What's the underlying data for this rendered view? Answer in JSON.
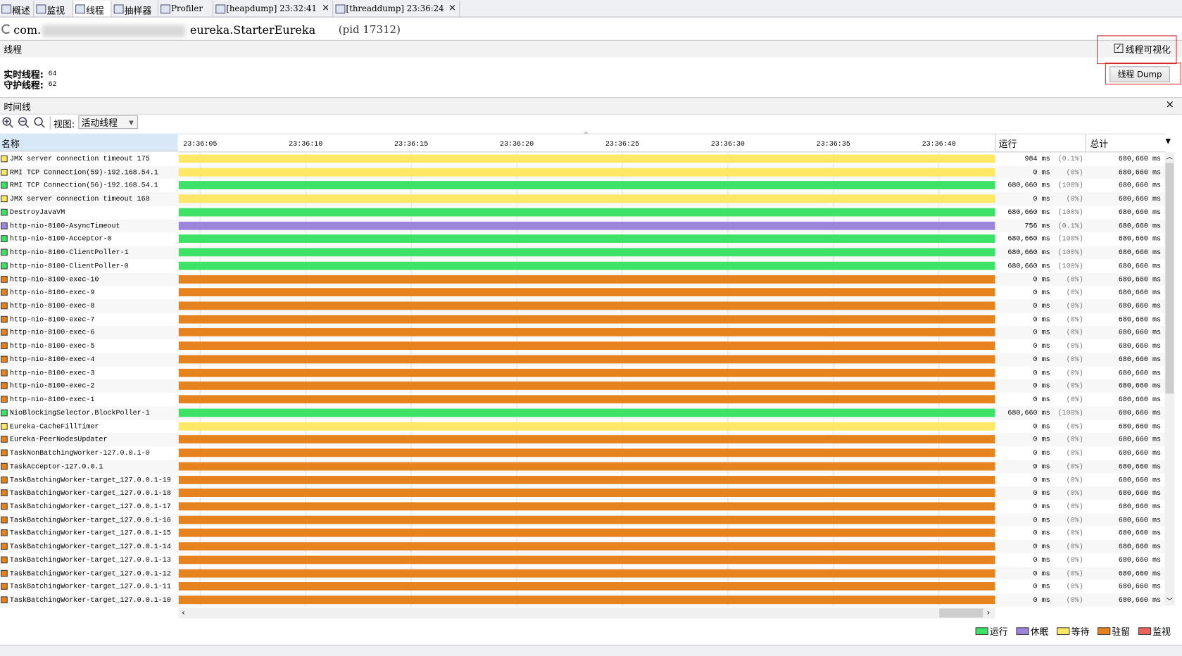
{
  "tabs": [
    "概述",
    "监视",
    "线程",
    "抽样器",
    "Profiler",
    "[heapdump] 23:32:41",
    "[threaddump] 23:36:24"
  ],
  "header": {
    "prefix": "com.",
    "app": "eureka.StarterEureka",
    "pid": "(pid 17312)"
  },
  "threads_panel": {
    "title": "线程",
    "checkbox": "线程可视化",
    "live_label": "实时线程:",
    "live": "64",
    "daemon_label": "守护线程:",
    "daemon": "62",
    "dump_button": "线程 Dump"
  },
  "timeline": {
    "title": "时间线",
    "view_label": "视图:",
    "view": "活动线程",
    "columns": {
      "name": "名称",
      "run": "运行",
      "total": "总计"
    },
    "ticks": [
      "23:36:05",
      "23:36:10",
      "23:36:15",
      "23:36:20",
      "23:36:25",
      "23:36:30",
      "23:36:35",
      "23:36:40"
    ],
    "rows": [
      {
        "name": "JMX server connection timeout 175",
        "color": "#ffe866",
        "run": "984 ms",
        "pct": "(0.1%)",
        "total": "680,660 ms"
      },
      {
        "name": "RMI TCP Connection(59)-192.168.54.1",
        "color": "#ffe866",
        "run": "0 ms",
        "pct": "(0%)",
        "total": "680,660 ms"
      },
      {
        "name": "RMI TCP Connection(56)-192.168.54.1",
        "color": "#3ee266",
        "run": "680,660 ms",
        "pct": "(100%)",
        "total": "680,660 ms"
      },
      {
        "name": "JMX server connection timeout 168",
        "color": "#ffe866",
        "run": "0 ms",
        "pct": "(0%)",
        "total": "680,660 ms"
      },
      {
        "name": "DestroyJavaVM",
        "color": "#3ee266",
        "run": "680,660 ms",
        "pct": "(100%)",
        "total": "680,660 ms"
      },
      {
        "name": "http-nio-8100-AsyncTimeout",
        "color": "#9b86dc",
        "run": "756 ms",
        "pct": "(0.1%)",
        "total": "680,660 ms"
      },
      {
        "name": "http-nio-8100-Acceptor-0",
        "color": "#3ee266",
        "run": "680,660 ms",
        "pct": "(100%)",
        "total": "680,660 ms"
      },
      {
        "name": "http-nio-8100-ClientPoller-1",
        "color": "#3ee266",
        "run": "680,660 ms",
        "pct": "(100%)",
        "total": "680,660 ms"
      },
      {
        "name": "http-nio-8100-ClientPoller-0",
        "color": "#3ee266",
        "run": "680,660 ms",
        "pct": "(100%)",
        "total": "680,660 ms"
      },
      {
        "name": "http-nio-8100-exec-10",
        "color": "#e6831f",
        "run": "0 ms",
        "pct": "(0%)",
        "total": "680,660 ms"
      },
      {
        "name": "http-nio-8100-exec-9",
        "color": "#e6831f",
        "run": "0 ms",
        "pct": "(0%)",
        "total": "680,660 ms"
      },
      {
        "name": "http-nio-8100-exec-8",
        "color": "#e6831f",
        "run": "0 ms",
        "pct": "(0%)",
        "total": "680,660 ms"
      },
      {
        "name": "http-nio-8100-exec-7",
        "color": "#e6831f",
        "run": "0 ms",
        "pct": "(0%)",
        "total": "680,660 ms"
      },
      {
        "name": "http-nio-8100-exec-6",
        "color": "#e6831f",
        "run": "0 ms",
        "pct": "(0%)",
        "total": "680,660 ms"
      },
      {
        "name": "http-nio-8100-exec-5",
        "color": "#e6831f",
        "run": "0 ms",
        "pct": "(0%)",
        "total": "680,660 ms"
      },
      {
        "name": "http-nio-8100-exec-4",
        "color": "#e6831f",
        "run": "0 ms",
        "pct": "(0%)",
        "total": "680,660 ms"
      },
      {
        "name": "http-nio-8100-exec-3",
        "color": "#e6831f",
        "run": "0 ms",
        "pct": "(0%)",
        "total": "680,660 ms"
      },
      {
        "name": "http-nio-8100-exec-2",
        "color": "#e6831f",
        "run": "0 ms",
        "pct": "(0%)",
        "total": "680,660 ms"
      },
      {
        "name": "http-nio-8100-exec-1",
        "color": "#e6831f",
        "run": "0 ms",
        "pct": "(0%)",
        "total": "680,660 ms"
      },
      {
        "name": "NioBlockingSelector.BlockPoller-1",
        "color": "#3ee266",
        "run": "680,660 ms",
        "pct": "(100%)",
        "total": "680,660 ms"
      },
      {
        "name": "Eureka-CacheFillTimer",
        "color": "#ffe866",
        "run": "0 ms",
        "pct": "(0%)",
        "total": "680,660 ms"
      },
      {
        "name": "Eureka-PeerNodesUpdater",
        "color": "#e6831f",
        "run": "0 ms",
        "pct": "(0%)",
        "total": "680,660 ms"
      },
      {
        "name": "TaskNonBatchingWorker-127.0.0.1-0",
        "color": "#e6831f",
        "run": "0 ms",
        "pct": "(0%)",
        "total": "680,660 ms"
      },
      {
        "name": "TaskAcceptor-127.0.0.1",
        "color": "#e6831f",
        "run": "0 ms",
        "pct": "(0%)",
        "total": "680,660 ms"
      },
      {
        "name": "TaskBatchingWorker-target_127.0.0.1-19",
        "color": "#e6831f",
        "run": "0 ms",
        "pct": "(0%)",
        "total": "680,660 ms"
      },
      {
        "name": "TaskBatchingWorker-target_127.0.0.1-18",
        "color": "#e6831f",
        "run": "0 ms",
        "pct": "(0%)",
        "total": "680,660 ms"
      },
      {
        "name": "TaskBatchingWorker-target_127.0.0.1-17",
        "color": "#e6831f",
        "run": "0 ms",
        "pct": "(0%)",
        "total": "680,660 ms"
      },
      {
        "name": "TaskBatchingWorker-target_127.0.0.1-16",
        "color": "#e6831f",
        "run": "0 ms",
        "pct": "(0%)",
        "total": "680,660 ms"
      },
      {
        "name": "TaskBatchingWorker-target_127.0.0.1-15",
        "color": "#e6831f",
        "run": "0 ms",
        "pct": "(0%)",
        "total": "680,660 ms"
      },
      {
        "name": "TaskBatchingWorker-target_127.0.0.1-14",
        "color": "#e6831f",
        "run": "0 ms",
        "pct": "(0%)",
        "total": "680,660 ms"
      },
      {
        "name": "TaskBatchingWorker-target_127.0.0.1-13",
        "color": "#e6831f",
        "run": "0 ms",
        "pct": "(0%)",
        "total": "680,660 ms"
      },
      {
        "name": "TaskBatchingWorker-target_127.0.0.1-12",
        "color": "#e6831f",
        "run": "0 ms",
        "pct": "(0%)",
        "total": "680,660 ms"
      },
      {
        "name": "TaskBatchingWorker-target_127.0.0.1-11",
        "color": "#e6831f",
        "run": "0 ms",
        "pct": "(0%)",
        "total": "680,660 ms"
      },
      {
        "name": "TaskBatchingWorker-target_127.0.0.1-10",
        "color": "#e6831f",
        "run": "0 ms",
        "pct": "(0%)",
        "total": "680,660 ms"
      }
    ],
    "legend": [
      {
        "name": "运行",
        "color": "#3ee266"
      },
      {
        "name": "休眠",
        "color": "#9b86dc"
      },
      {
        "name": "等待",
        "color": "#ffe866"
      },
      {
        "name": "驻留",
        "color": "#e6831f"
      },
      {
        "name": "监视",
        "color": "#f25f5c"
      }
    ]
  }
}
